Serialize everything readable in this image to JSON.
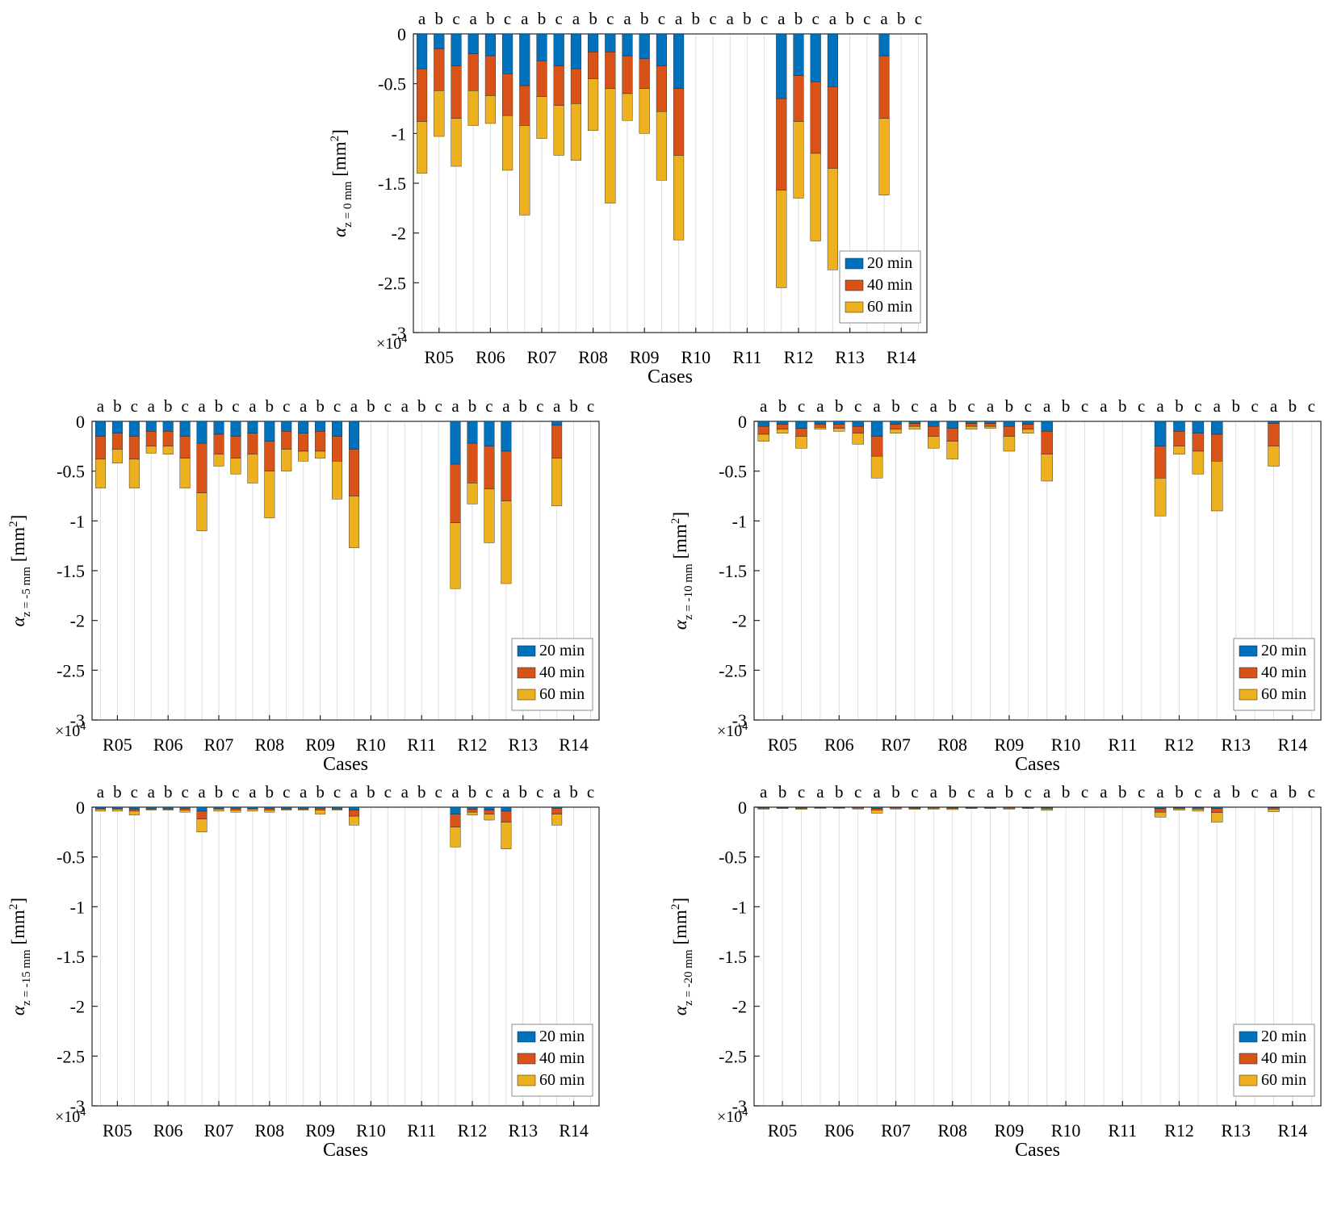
{
  "figure": {
    "background": "#ffffff",
    "axis_color": "#262626",
    "grid_color": "#dedede"
  },
  "chart_common": {
    "type": "bar",
    "stacked": true,
    "orientation": "vertical-negative",
    "xlabel": "Cases",
    "ylim": [
      -3,
      0
    ],
    "y_tick_labels": [
      "0",
      "-0.5",
      "-1",
      "-1.5",
      "-2",
      "-2.5",
      "-3"
    ],
    "y_tick_values": [
      0,
      -0.5,
      -1,
      -1.5,
      -2,
      -2.5,
      -3
    ],
    "y_scale_label": {
      "base": "×10",
      "exponent": "4"
    },
    "ylabel_symbol": "α",
    "ylabel_unit_open": " [mm",
    "ylabel_unit_sup": "2",
    "ylabel_unit_close": "]",
    "categories": [
      "R05",
      "R06",
      "R07",
      "R08",
      "R09",
      "R10",
      "R11",
      "R12",
      "R13",
      "R14"
    ],
    "subgroup_labels": [
      "a",
      "b",
      "c"
    ],
    "legend": [
      {
        "label": "20 min",
        "color": "#0072BD"
      },
      {
        "label": "40 min",
        "color": "#D95319"
      },
      {
        "label": "60 min",
        "color": "#EDB120"
      }
    ]
  },
  "chart_data": [
    {
      "id": "alpha-z-0mm",
      "ylabel_subscript": "z = 0 mm",
      "bars": {
        "R05": {
          "a": [
            0.35,
            0.88,
            1.4
          ],
          "b": [
            0.15,
            0.57,
            1.03
          ],
          "c": [
            0.32,
            0.85,
            1.33
          ]
        },
        "R06": {
          "a": [
            0.2,
            0.57,
            0.92
          ],
          "b": [
            0.22,
            0.62,
            0.9
          ],
          "c": [
            0.4,
            0.82,
            1.37
          ]
        },
        "R07": {
          "a": [
            0.52,
            0.92,
            1.82
          ],
          "b": [
            0.27,
            0.63,
            1.05
          ],
          "c": [
            0.32,
            0.72,
            1.22
          ]
        },
        "R08": {
          "a": [
            0.35,
            0.7,
            1.27
          ],
          "b": [
            0.18,
            0.45,
            0.97
          ],
          "c": [
            0.18,
            0.55,
            1.7
          ]
        },
        "R09": {
          "a": [
            0.22,
            0.6,
            0.87
          ],
          "b": [
            0.25,
            0.55,
            1.0
          ],
          "c": [
            0.32,
            0.78,
            1.47
          ]
        },
        "R10": {
          "a": [
            0.55,
            1.22,
            2.07
          ],
          "b": null,
          "c": null
        },
        "R11": {
          "a": null,
          "b": null,
          "c": null
        },
        "R12": {
          "a": [
            0.65,
            1.57,
            2.55
          ],
          "b": [
            0.42,
            0.88,
            1.65
          ],
          "c": [
            0.48,
            1.2,
            2.08
          ]
        },
        "R13": {
          "a": [
            0.53,
            1.35,
            2.37
          ],
          "b": null,
          "c": null
        },
        "R14": {
          "a": [
            0.22,
            0.85,
            1.62
          ],
          "b": null,
          "c": null
        }
      }
    },
    {
      "id": "alpha-z-minus5mm",
      "ylabel_subscript": "z = -5 mm",
      "bars": {
        "R05": {
          "a": [
            0.15,
            0.38,
            0.67
          ],
          "b": [
            0.12,
            0.28,
            0.42
          ],
          "c": [
            0.15,
            0.38,
            0.67
          ]
        },
        "R06": {
          "a": [
            0.1,
            0.25,
            0.32
          ],
          "b": [
            0.1,
            0.25,
            0.33
          ],
          "c": [
            0.15,
            0.37,
            0.67
          ]
        },
        "R07": {
          "a": [
            0.22,
            0.72,
            1.1
          ],
          "b": [
            0.13,
            0.33,
            0.45
          ],
          "c": [
            0.15,
            0.37,
            0.53
          ]
        },
        "R08": {
          "a": [
            0.12,
            0.33,
            0.62
          ],
          "b": [
            0.2,
            0.5,
            0.97
          ],
          "c": [
            0.1,
            0.28,
            0.5
          ]
        },
        "R09": {
          "a": [
            0.12,
            0.3,
            0.4
          ],
          "b": [
            0.1,
            0.3,
            0.37
          ],
          "c": [
            0.15,
            0.4,
            0.78
          ]
        },
        "R10": {
          "a": [
            0.28,
            0.75,
            1.27
          ],
          "b": null,
          "c": null
        },
        "R11": {
          "a": null,
          "b": null,
          "c": null
        },
        "R12": {
          "a": [
            0.43,
            1.02,
            1.68
          ],
          "b": [
            0.22,
            0.62,
            0.83
          ],
          "c": [
            0.25,
            0.68,
            1.22
          ]
        },
        "R13": {
          "a": [
            0.3,
            0.8,
            1.63
          ],
          "b": null,
          "c": null
        },
        "R14": {
          "a": [
            0.04,
            0.37,
            0.85
          ],
          "b": null,
          "c": null
        }
      }
    },
    {
      "id": "alpha-z-minus10mm",
      "ylabel_subscript": "z = -10 mm",
      "bars": {
        "R05": {
          "a": [
            0.05,
            0.13,
            0.2
          ],
          "b": [
            0.03,
            0.08,
            0.12
          ],
          "c": [
            0.07,
            0.15,
            0.27
          ]
        },
        "R06": {
          "a": [
            0.03,
            0.06,
            0.08
          ],
          "b": [
            0.03,
            0.07,
            0.1
          ],
          "c": [
            0.05,
            0.12,
            0.23
          ]
        },
        "R07": {
          "a": [
            0.15,
            0.35,
            0.57
          ],
          "b": [
            0.03,
            0.08,
            0.12
          ],
          "c": [
            0.02,
            0.05,
            0.08
          ]
        },
        "R08": {
          "a": [
            0.05,
            0.15,
            0.27
          ],
          "b": [
            0.07,
            0.2,
            0.38
          ],
          "c": [
            0.02,
            0.05,
            0.08
          ]
        },
        "R09": {
          "a": [
            0.02,
            0.05,
            0.07
          ],
          "b": [
            0.05,
            0.15,
            0.3
          ],
          "c": [
            0.03,
            0.08,
            0.12
          ]
        },
        "R10": {
          "a": [
            0.1,
            0.33,
            0.6
          ],
          "b": null,
          "c": null
        },
        "R11": {
          "a": null,
          "b": null,
          "c": null
        },
        "R12": {
          "a": [
            0.25,
            0.57,
            0.95
          ],
          "b": [
            0.1,
            0.25,
            0.33
          ],
          "c": [
            0.12,
            0.3,
            0.53
          ]
        },
        "R13": {
          "a": [
            0.13,
            0.4,
            0.9
          ],
          "b": null,
          "c": null
        },
        "R14": {
          "a": [
            0.02,
            0.25,
            0.45
          ],
          "b": null,
          "c": null
        }
      }
    },
    {
      "id": "alpha-z-minus15mm",
      "ylabel_subscript": "z = -15 mm",
      "bars": {
        "R05": {
          "a": [
            0.01,
            0.02,
            0.04
          ],
          "b": [
            0.01,
            0.02,
            0.04
          ],
          "c": [
            0.02,
            0.04,
            0.08
          ]
        },
        "R06": {
          "a": [
            0.01,
            0.02,
            0.03
          ],
          "b": [
            0.01,
            0.02,
            0.03
          ],
          "c": [
            0.01,
            0.03,
            0.05
          ]
        },
        "R07": {
          "a": [
            0.04,
            0.12,
            0.25
          ],
          "b": [
            0.01,
            0.02,
            0.04
          ],
          "c": [
            0.01,
            0.03,
            0.05
          ]
        },
        "R08": {
          "a": [
            0.01,
            0.02,
            0.04
          ],
          "b": [
            0.01,
            0.03,
            0.05
          ],
          "c": [
            0.01,
            0.02,
            0.03
          ]
        },
        "R09": {
          "a": [
            0.01,
            0.02,
            0.03
          ],
          "b": [
            0.01,
            0.03,
            0.07
          ],
          "c": [
            0.01,
            0.02,
            0.03
          ]
        },
        "R10": {
          "a": [
            0.03,
            0.09,
            0.18
          ],
          "b": null,
          "c": null
        },
        "R11": {
          "a": null,
          "b": null,
          "c": null
        },
        "R12": {
          "a": [
            0.07,
            0.2,
            0.4
          ],
          "b": [
            0.02,
            0.05,
            0.08
          ],
          "c": [
            0.03,
            0.07,
            0.13
          ]
        },
        "R13": {
          "a": [
            0.04,
            0.15,
            0.42
          ],
          "b": null,
          "c": null
        },
        "R14": {
          "a": [
            0.01,
            0.07,
            0.18
          ],
          "b": null,
          "c": null
        }
      }
    },
    {
      "id": "alpha-z-minus20mm",
      "ylabel_subscript": "z = -20 mm",
      "bars": {
        "R05": {
          "a": [
            0.005,
            0.012,
            0.02
          ],
          "b": [
            0.004,
            0.008,
            0.014
          ],
          "c": [
            0.005,
            0.012,
            0.022
          ]
        },
        "R06": {
          "a": [
            0.003,
            0.007,
            0.012
          ],
          "b": [
            0.003,
            0.007,
            0.012
          ],
          "c": [
            0.004,
            0.01,
            0.018
          ]
        },
        "R07": {
          "a": [
            0.012,
            0.03,
            0.06
          ],
          "b": [
            0.004,
            0.01,
            0.018
          ],
          "c": [
            0.005,
            0.012,
            0.022
          ]
        },
        "R08": {
          "a": [
            0.004,
            0.01,
            0.02
          ],
          "b": [
            0.005,
            0.013,
            0.024
          ],
          "c": [
            0.003,
            0.008,
            0.014
          ]
        },
        "R09": {
          "a": [
            0.003,
            0.008,
            0.013
          ],
          "b": [
            0.004,
            0.011,
            0.02
          ],
          "c": [
            0.003,
            0.008,
            0.013
          ]
        },
        "R10": {
          "a": [
            0.007,
            0.017,
            0.032
          ],
          "b": null,
          "c": null
        },
        "R11": {
          "a": null,
          "b": null,
          "c": null
        },
        "R12": {
          "a": [
            0.016,
            0.05,
            0.1
          ],
          "b": [
            0.006,
            0.016,
            0.03
          ],
          "c": [
            0.008,
            0.02,
            0.04
          ]
        },
        "R13": {
          "a": [
            0.015,
            0.055,
            0.15
          ],
          "b": null,
          "c": null
        },
        "R14": {
          "a": [
            0.005,
            0.02,
            0.045
          ],
          "b": null,
          "c": null
        }
      }
    }
  ]
}
